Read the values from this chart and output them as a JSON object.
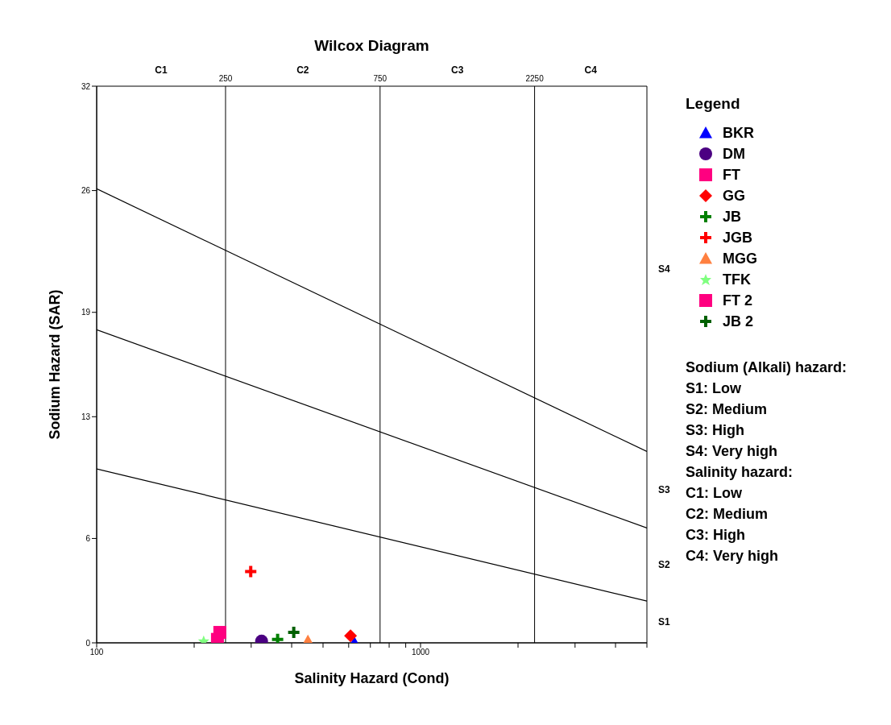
{
  "chart_data": {
    "type": "scatter",
    "title": "Wilcox Diagram",
    "xlabel": "Salinity Hazard (Cond)",
    "ylabel": "Sodium Hazard (SAR)",
    "legend_title": "Legend",
    "legend": "right",
    "log": "x",
    "grid": false,
    "xlim": [
      100,
      5000
    ],
    "xticks": [
      100,
      {
        "value": 200,
        "label": null
      },
      {
        "value": 300,
        "label": null
      },
      {
        "value": 400,
        "label": null
      },
      {
        "value": 500,
        "label": null
      },
      {
        "value": 600,
        "label": null
      },
      {
        "value": 700,
        "label": null
      },
      {
        "value": 800,
        "label": null
      },
      {
        "value": 900,
        "label": null
      },
      1000,
      {
        "value": 2000,
        "label": null
      },
      {
        "value": 3000,
        "label": null
      },
      {
        "value": 4000,
        "label": null
      },
      {
        "value": 5000,
        "label": null
      }
    ],
    "ylim": [
      0,
      32
    ],
    "yticks": [
      0,
      6,
      13,
      19,
      26,
      32
    ],
    "ref_lines": [
      {
        "axis": "x",
        "value": 250,
        "label": "250",
        "color": "#000000"
      },
      {
        "axis": "x",
        "value": 750,
        "label": "750",
        "color": "#000000"
      },
      {
        "axis": "x",
        "value": 2250,
        "label": "2250",
        "color": "#000000"
      }
    ],
    "series": [
      {
        "name": "BKR",
        "color": "#0000ff",
        "marker": "triangle",
        "x": [
          625
        ],
        "values": [
          0
        ]
      },
      {
        "name": "DM",
        "color": "#4b0082",
        "marker": "circle",
        "x": [
          323
        ],
        "values": [
          0.1
        ]
      },
      {
        "name": "FT",
        "color": "#ff0080",
        "marker": "square",
        "x": [
          240
        ],
        "values": [
          0.6
        ]
      },
      {
        "name": "GG",
        "color": "#ff0000",
        "marker": "diamond",
        "x": [
          608
        ],
        "values": [
          0.4
        ]
      },
      {
        "name": "JB",
        "color": "#008000",
        "marker": "cross",
        "x": [
          362
        ],
        "values": [
          0.2
        ]
      },
      {
        "name": "JGB",
        "color": "#ff0000",
        "marker": "cross",
        "x": [
          299
        ],
        "values": [
          4.1
        ]
      },
      {
        "name": "MGG",
        "color": "#ff8040",
        "marker": "triangle",
        "x": [
          449
        ],
        "values": [
          0.1
        ]
      },
      {
        "name": "TFK",
        "color": "#80ff80",
        "marker": "star",
        "x": [
          214
        ],
        "values": [
          0.1
        ]
      },
      {
        "name": "FT 2",
        "color": "#ff0080",
        "marker": "square",
        "x": [
          236
        ],
        "values": [
          0.2
        ]
      },
      {
        "name": "JB 2",
        "color": "#006000",
        "marker": "cross",
        "x": [
          406
        ],
        "values": [
          0.6
        ]
      },
      {
        "type": "line",
        "color": "#000000",
        "marker": "none",
        "x": [
          100,
          5000
        ],
        "values": [
          26.1,
          11.0
        ]
      },
      {
        "type": "line",
        "color": "#000000",
        "marker": "none",
        "x": [
          100,
          5000
        ],
        "values": [
          18.0,
          6.6
        ]
      },
      {
        "type": "line",
        "color": "#000000",
        "marker": "none",
        "x": [
          100,
          5000
        ],
        "values": [
          10.0,
          2.4
        ]
      }
    ],
    "annotations": [
      "C1",
      "C2",
      "C3",
      "C4",
      "S4",
      "S3",
      "S2",
      "S1",
      "Sodium (Alkali) hazard:",
      "S1: Low",
      "S2: Medium",
      "S3: High",
      "S4: Very high",
      "Salinity hazard:",
      "C1: Low",
      "C2: Medium",
      "C3: High",
      "C4: Very high"
    ]
  }
}
